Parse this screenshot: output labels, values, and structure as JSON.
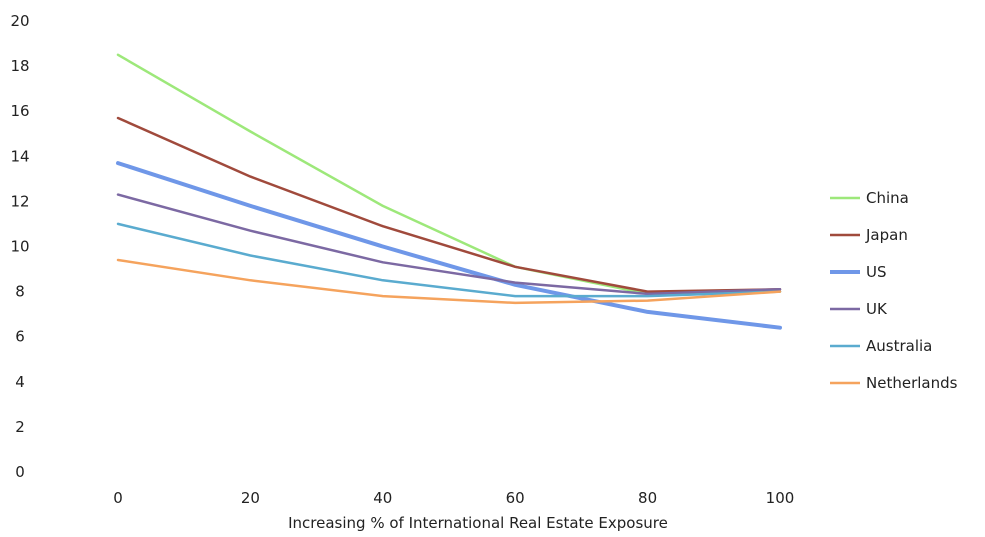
{
  "chart_data": {
    "type": "line",
    "title": "",
    "xlabel": "Increasing % of International Real Estate Exposure",
    "ylabel": "",
    "x": [
      0,
      20,
      40,
      60,
      80,
      100
    ],
    "xlim": [
      0,
      100
    ],
    "ylim": [
      0,
      20
    ],
    "x_ticks": [
      "0",
      "20",
      "40",
      "60",
      "80",
      "100"
    ],
    "y_ticks": [
      "0",
      "2",
      "4",
      "6",
      "8",
      "10",
      "12",
      "14",
      "16",
      "18",
      "20"
    ],
    "grid": false,
    "legend_position": "right",
    "series": [
      {
        "name": "China",
        "color": "#9de87a",
        "values": [
          18.5,
          15.1,
          11.8,
          9.1,
          7.9,
          8.0
        ]
      },
      {
        "name": "Japan",
        "color": "#a04a3c",
        "values": [
          15.7,
          13.1,
          10.9,
          9.1,
          8.0,
          8.1
        ]
      },
      {
        "name": "US",
        "color": "#6f97e8",
        "values": [
          13.7,
          11.8,
          10.0,
          8.3,
          7.1,
          6.4
        ]
      },
      {
        "name": "UK",
        "color": "#7c69a3",
        "values": [
          12.3,
          10.7,
          9.3,
          8.4,
          7.9,
          8.1
        ]
      },
      {
        "name": "Australia",
        "color": "#5aabcf",
        "values": [
          11.0,
          9.6,
          8.5,
          7.8,
          7.8,
          8.0
        ]
      },
      {
        "name": "Netherlands",
        "color": "#f5a35d",
        "values": [
          9.4,
          8.5,
          7.8,
          7.5,
          7.6,
          8.0
        ]
      }
    ]
  }
}
